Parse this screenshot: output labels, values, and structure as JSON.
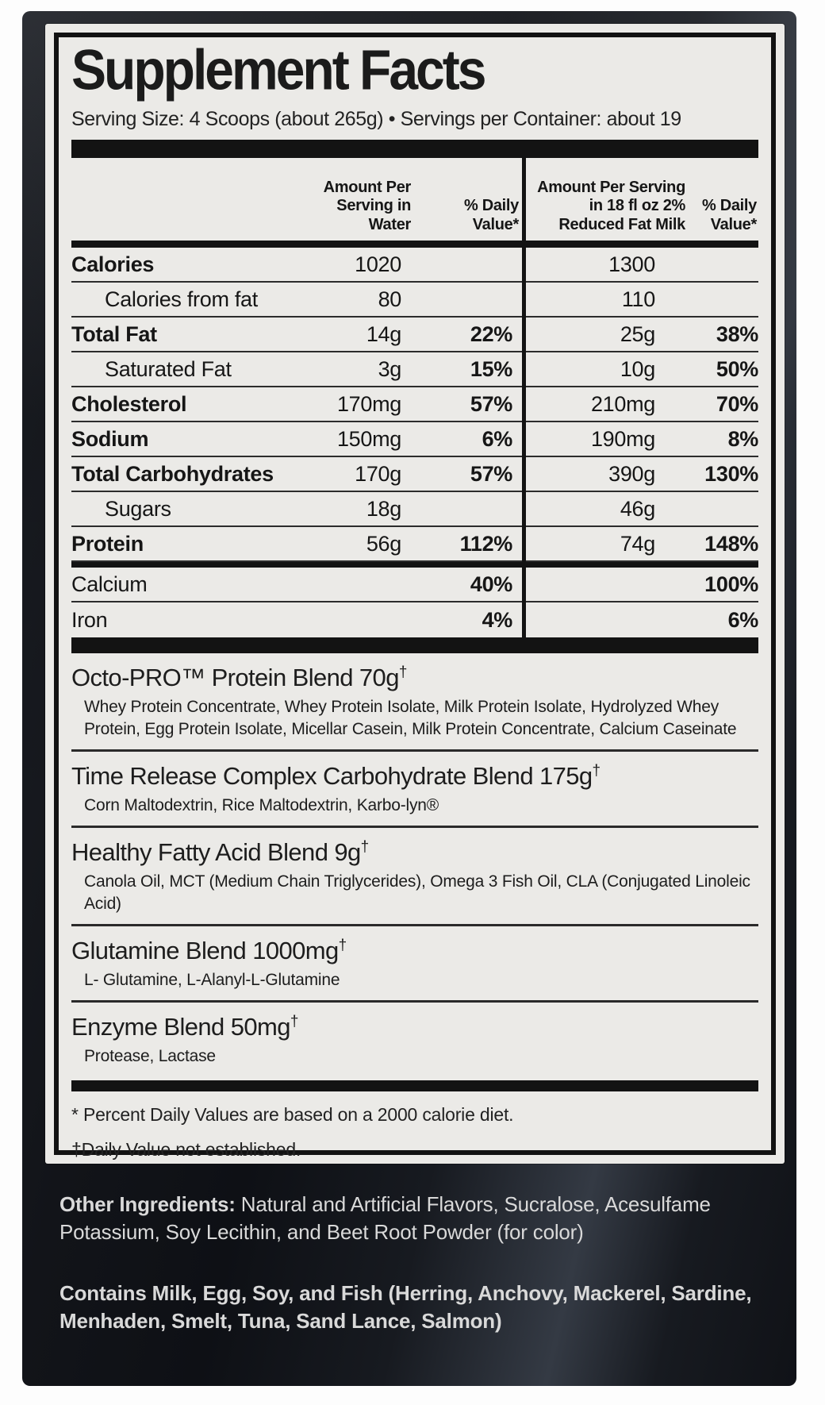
{
  "label": {
    "title": "Supplement Facts",
    "serving_line": "Serving Size: 4 Scoops (about 265g) • Servings per Container: about 19",
    "columns": {
      "water_amount": "Amount Per\nServing in\nWater",
      "water_dv": "% Daily\nValue*",
      "milk_amount": "Amount Per Serving\nin 18 fl oz 2%\nReduced Fat Milk",
      "milk_dv": "% Daily\nValue*"
    },
    "rows": [
      {
        "name": "Calories",
        "water_amount": "1020",
        "water_dv": "",
        "milk_amount": "1300",
        "milk_dv": ""
      },
      {
        "name": "Calories from fat",
        "water_amount": "80",
        "water_dv": "",
        "milk_amount": "110",
        "milk_dv": ""
      },
      {
        "name": "Total Fat",
        "water_amount": "14g",
        "water_dv": "22%",
        "milk_amount": "25g",
        "milk_dv": "38%"
      },
      {
        "name": "Saturated Fat",
        "water_amount": "3g",
        "water_dv": "15%",
        "milk_amount": "10g",
        "milk_dv": "50%"
      },
      {
        "name": "Cholesterol",
        "water_amount": "170mg",
        "water_dv": "57%",
        "milk_amount": "210mg",
        "milk_dv": "70%"
      },
      {
        "name": "Sodium",
        "water_amount": "150mg",
        "water_dv": "6%",
        "milk_amount": "190mg",
        "milk_dv": "8%"
      },
      {
        "name": "Total Carbohydrates",
        "water_amount": "170g",
        "water_dv": "57%",
        "milk_amount": "390g",
        "milk_dv": "130%"
      },
      {
        "name": "Sugars",
        "water_amount": "18g",
        "water_dv": "",
        "milk_amount": "46g",
        "milk_dv": ""
      },
      {
        "name": "Protein",
        "water_amount": "56g",
        "water_dv": "112%",
        "milk_amount": "74g",
        "milk_dv": "148%"
      },
      {
        "name": "Calcium",
        "water_amount": "",
        "water_dv": "40%",
        "milk_amount": "",
        "milk_dv": "100%"
      },
      {
        "name": "Iron",
        "water_amount": "",
        "water_dv": "4%",
        "milk_amount": "",
        "milk_dv": "6%"
      }
    ],
    "blends": [
      {
        "title": "Octo-PRO™ Protein Blend 70g",
        "dagger": "†",
        "ingredients": "Whey Protein Concentrate, Whey Protein Isolate, Milk Protein Isolate, Hydrolyzed Whey Protein, Egg Protein Isolate, Micellar Casein, Milk Protein Concentrate, Calcium Caseinate"
      },
      {
        "title": "Time Release Complex Carbohydrate Blend 175g",
        "dagger": "†",
        "ingredients": "Corn Maltodextrin, Rice Maltodextrin, Karbo-lyn®"
      },
      {
        "title": "Healthy Fatty Acid Blend 9g",
        "dagger": "†",
        "ingredients": "Canola Oil, MCT (Medium Chain Triglycerides), Omega 3 Fish Oil, CLA (Conjugated Linoleic Acid)"
      },
      {
        "title": "Glutamine Blend 1000mg",
        "dagger": "†",
        "ingredients": "L- Glutamine, L-Alanyl-L-Glutamine"
      },
      {
        "title": "Enzyme Blend 50mg",
        "dagger": "†",
        "ingredients": "Protease, Lactase"
      }
    ],
    "footnotes": {
      "percent_daily": "* Percent Daily Values are based on a 2000 calorie diet.",
      "daily_value": "†Daily Value not established."
    }
  },
  "bottle": {
    "other_ingredients_label": "Other Ingredients:",
    "other_ingredients_text": " Natural and Artificial Flavors, Sucralose, Acesulfame Potassium, Soy Lecithin, and Beet Root Powder (for color)",
    "contains_text": "Contains Milk, Egg, Soy, and Fish (Herring, Anchovy, Mackerel, Sardine, Menhaden, Smelt, Tuna, Sand Lance, Salmon)"
  },
  "colors": {
    "label_background": "#ebeae7",
    "label_text": "#161616",
    "bottle_dark": "#14161b",
    "bottle_text": "#d9d9d9"
  }
}
